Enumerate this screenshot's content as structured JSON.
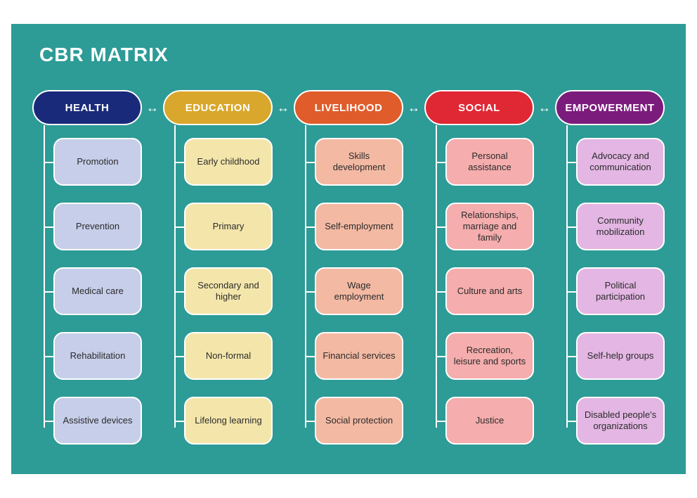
{
  "type": "tree-matrix",
  "title": "CBR MATRIX",
  "background_color": "#2d9b96",
  "title_color": "#ffffff",
  "title_fontsize": 28,
  "connector_color": "#ffffff",
  "arrow_glyph": "↔",
  "columns": [
    {
      "header": "HEALTH",
      "header_bg": "#1a2a7a",
      "header_fg": "#ffffff",
      "card_bg": "#c6cee9",
      "card_fg": "#2b2b2b",
      "items": [
        "Promotion",
        "Prevention",
        "Medical care",
        "Rehabilitation",
        "Assistive devices"
      ]
    },
    {
      "header": "EDUCATION",
      "header_bg": "#d9a72b",
      "header_fg": "#ffffff",
      "card_bg": "#f4e6ab",
      "card_fg": "#2b2b2b",
      "items": [
        "Early childhood",
        "Primary",
        "Secondary and higher",
        "Non-formal",
        "Lifelong learning"
      ]
    },
    {
      "header": "LIVELIHOOD",
      "header_bg": "#e05c2b",
      "header_fg": "#ffffff",
      "card_bg": "#f3b9a3",
      "card_fg": "#2b2b2b",
      "items": [
        "Skills development",
        "Self-employment",
        "Wage employment",
        "Financial services",
        "Social protection"
      ]
    },
    {
      "header": "SOCIAL",
      "header_bg": "#e02734",
      "header_fg": "#ffffff",
      "card_bg": "#f5adad",
      "card_fg": "#2b2b2b",
      "items": [
        "Personal assistance",
        "Relationships, marriage and family",
        "Culture and arts",
        "Recreation, leisure and sports",
        "Justice"
      ]
    },
    {
      "header": "EMPOWERMENT",
      "header_bg": "#7b1c7d",
      "header_fg": "#ffffff",
      "card_bg": "#e3b6e3",
      "card_fg": "#2b2b2b",
      "items": [
        "Advocacy and communication",
        "Community mobilization",
        "Political participation",
        "Self-help groups",
        "Disabled people's organizations"
      ]
    }
  ]
}
